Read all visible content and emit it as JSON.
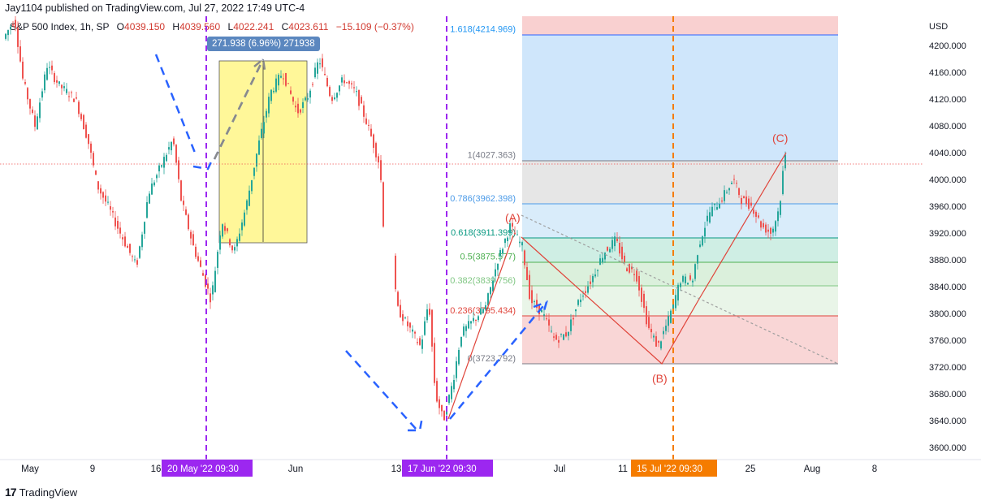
{
  "header": {
    "text": "Jay1104 published on TradingView.com, Jul 27, 2022 17:49 UTC-4"
  },
  "legend": {
    "symbol": "S&P 500 Index, 1h, SP",
    "open_label": "O",
    "open": "4039.150",
    "high_label": "H",
    "high": "4039.560",
    "low_label": "L",
    "low": "4022.241",
    "close_label": "C",
    "close": "4023.611",
    "change": "−15.109 (−0.37%)"
  },
  "measure_label": "271.938 (6.96%) 271938",
  "footer": {
    "logo_icon": "tradingview-logo-icon",
    "brand": "TradingView"
  },
  "colors": {
    "up": "#26a69a",
    "down": "#ef5350",
    "fib_blue": "#bbdefb",
    "fib_red": "#f8c4c4",
    "purple": "#9c27f0",
    "orange": "#f57c00"
  },
  "chart_data": {
    "type": "candlestick",
    "currency_label": "USD",
    "yticks": [
      3600,
      3640,
      3680,
      3720,
      3760,
      3800,
      3840,
      3880,
      3920,
      3960,
      4000,
      4040,
      4080,
      4120,
      4160,
      4200
    ],
    "ylim": [
      3582,
      4250
    ],
    "xtick_labels": [
      "May",
      "9",
      "16",
      "Jun",
      "13",
      "Jul",
      "11",
      "25",
      "Aug",
      "8"
    ],
    "highlighted_dates": [
      {
        "label": "20 May '22  09:30",
        "color": "purple"
      },
      {
        "label": "17 Jun '22  09:30",
        "color": "purple"
      },
      {
        "label": "15 Jul '22  09:30",
        "color": "orange"
      }
    ],
    "fib_levels": [
      {
        "ratio": "1.618",
        "price": 4214.969,
        "label": "1.618(4214.969)"
      },
      {
        "ratio": "1",
        "price": 4027.363,
        "label": "1(4027.363)"
      },
      {
        "ratio": "0.786",
        "price": 3962.398,
        "label": "0.786(3962.398)"
      },
      {
        "ratio": "0.618",
        "price": 3911.399,
        "label": "0.618(3911.399)"
      },
      {
        "ratio": "0.5",
        "price": 3875.577,
        "label": "0.5(3875.577)"
      },
      {
        "ratio": "0.382",
        "price": 3839.756,
        "label": "0.382(3839.756)"
      },
      {
        "ratio": "0.236",
        "price": 3795.434,
        "label": "0.236(3795.434)"
      },
      {
        "ratio": "0",
        "price": 3723.792,
        "label": "0(3723.792)"
      }
    ],
    "waves": [
      {
        "label": "(A)",
        "price": 3945
      },
      {
        "label": "(B)",
        "price": 3723.8
      },
      {
        "label": "(C)",
        "price": 4040
      }
    ],
    "current_price": 4023.6
  }
}
